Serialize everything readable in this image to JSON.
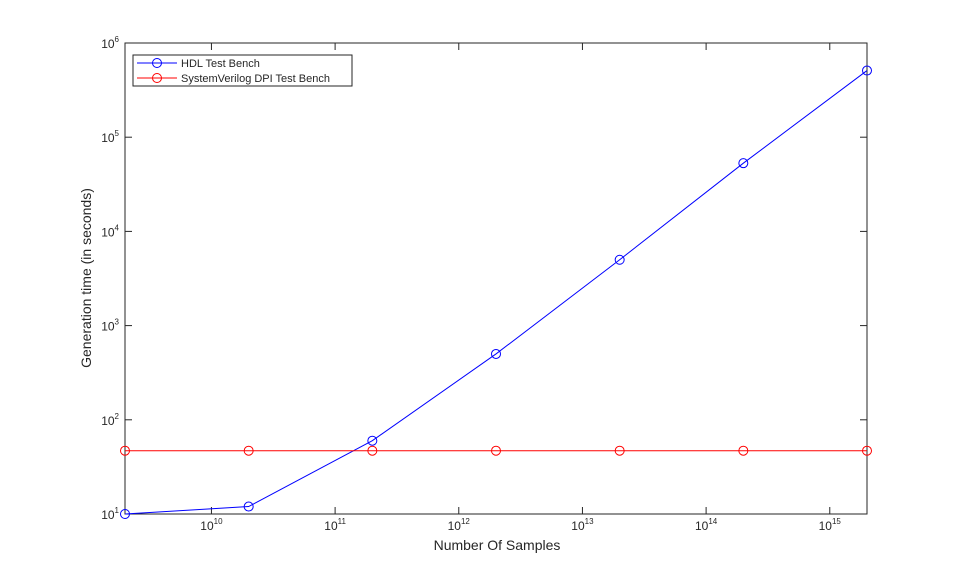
{
  "chart_data": {
    "type": "line",
    "xlabel": "Number Of Samples",
    "ylabel": "Generation time (in seconds)",
    "x": [
      2000000000,
      20000000000,
      200000000000,
      2000000000000,
      20000000000000,
      200000000000000,
      2000000000000000
    ],
    "series": [
      {
        "name": "HDL Test Bench",
        "color": "#0000ff",
        "values": [
          10,
          12,
          60,
          500,
          5000,
          53000,
          510000
        ]
      },
      {
        "name": "SystemVerilog DPI Test Bench",
        "color": "#ff0000",
        "values": [
          47,
          47,
          47,
          47,
          47,
          47,
          47
        ]
      }
    ],
    "xlog": true,
    "ylog": true,
    "xlim": [
      2000000000,
      2000000000000000
    ],
    "ylim": [
      10,
      1000000
    ],
    "xticks": [
      {
        "value": 10000000000,
        "label": "10",
        "exponent": "10"
      },
      {
        "value": 100000000000,
        "label": "10",
        "exponent": "11"
      },
      {
        "value": 1000000000000,
        "label": "10",
        "exponent": "12"
      },
      {
        "value": 10000000000000,
        "label": "10",
        "exponent": "13"
      },
      {
        "value": 100000000000000,
        "label": "10",
        "exponent": "14"
      },
      {
        "value": 1000000000000000,
        "label": "10",
        "exponent": "15"
      }
    ],
    "yticks": [
      {
        "value": 10,
        "label": "10",
        "exponent": "1"
      },
      {
        "value": 100,
        "label": "10",
        "exponent": "2"
      },
      {
        "value": 1000,
        "label": "10",
        "exponent": "3"
      },
      {
        "value": 10000,
        "label": "10",
        "exponent": "4"
      },
      {
        "value": 100000,
        "label": "10",
        "exponent": "5"
      },
      {
        "value": 1000000,
        "label": "10",
        "exponent": "6"
      }
    ],
    "marker": "circle",
    "legend": "northwest"
  }
}
